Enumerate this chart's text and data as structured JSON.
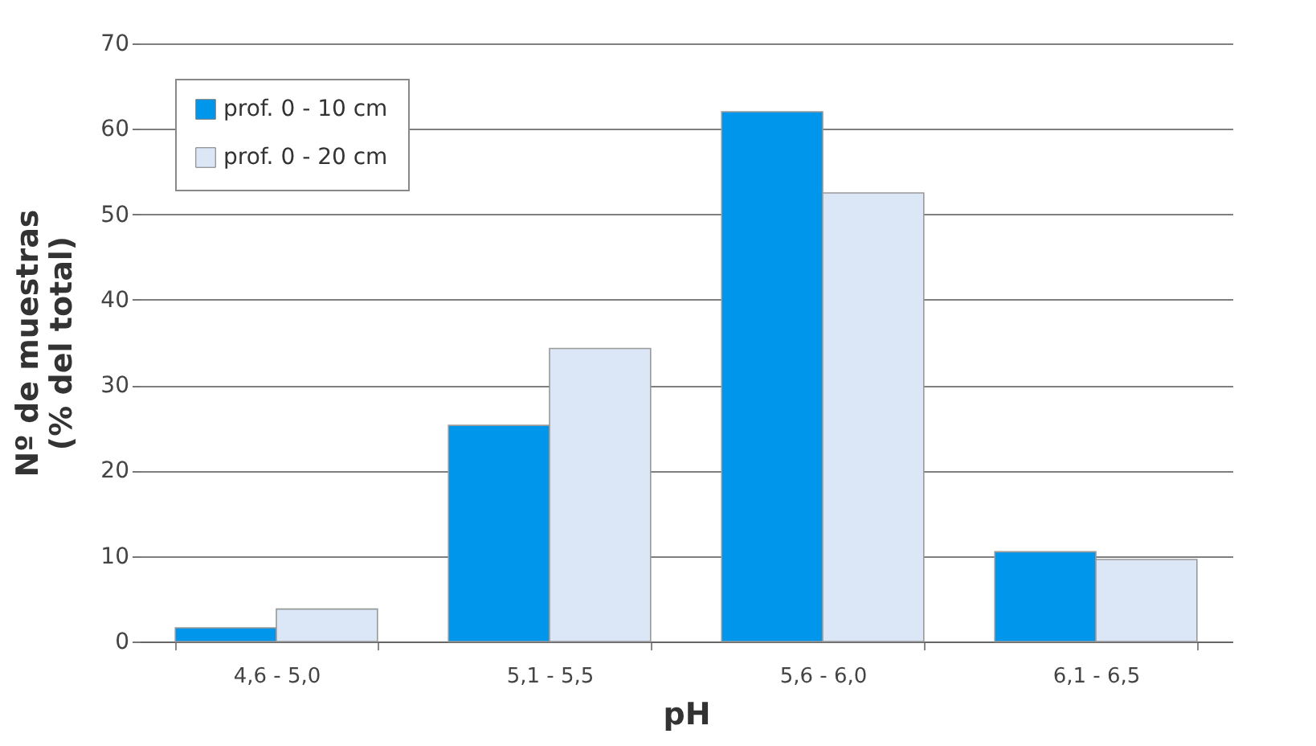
{
  "chart_data": {
    "type": "bar",
    "xlabel": "pH",
    "ylabel": "Nº de muestras\n(% del total)",
    "categories": [
      "4,6 - 5,0",
      "5,1 - 5,5",
      "5,6 - 6,0",
      "6,1 - 6,5"
    ],
    "series": [
      {
        "name": "prof. 0 - 10 cm",
        "color": "#0096ec",
        "values": [
          1.6,
          25.3,
          62,
          10.5
        ]
      },
      {
        "name": "prof. 0 - 20 cm",
        "color": "#dbe6f6",
        "values": [
          3.8,
          34.3,
          52.5,
          9.6
        ]
      }
    ],
    "ylim": [
      0,
      70
    ],
    "yticks": [
      0,
      10,
      20,
      30,
      40,
      50,
      60,
      70
    ],
    "grid": "y",
    "legend": "top left"
  }
}
